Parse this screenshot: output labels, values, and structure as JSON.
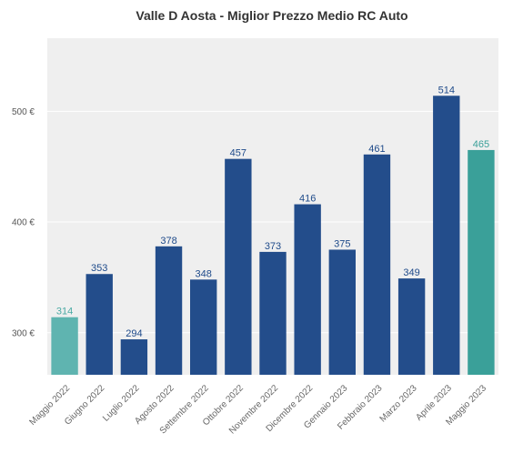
{
  "chart_data": {
    "type": "bar",
    "title": "Valle D Aosta - Miglior Prezzo Medio RC Auto",
    "xlabel": "",
    "ylabel": "",
    "categories": [
      "Maggio 2022",
      "Giugno 2022",
      "Luglio 2022",
      "Agosto 2022",
      "Settembre 2022",
      "Ottobre 2022",
      "Novembre 2022",
      "Dicembre 2022",
      "Gennaio 2023",
      "Febbraio 2023",
      "Marzo 2023",
      "Aprile 2023",
      "Maggio 2023"
    ],
    "values": [
      314,
      353,
      294,
      378,
      348,
      457,
      373,
      416,
      375,
      461,
      349,
      514,
      465
    ],
    "data_labels": [
      "314",
      "353",
      "294",
      "378",
      "348",
      "457",
      "373",
      "416",
      "375",
      "461",
      "349",
      "514",
      "465"
    ],
    "ylim": [
      262,
      566
    ],
    "yticks": [
      300,
      400,
      500
    ],
    "ytick_labels": [
      "300 €",
      "400 €",
      "500 €"
    ],
    "grid": true,
    "legend": "none",
    "bar_colors": [
      "#5fb4b0",
      "#234d8b",
      "#234d8b",
      "#234d8b",
      "#234d8b",
      "#234d8b",
      "#234d8b",
      "#234d8b",
      "#234d8b",
      "#234d8b",
      "#234d8b",
      "#234d8b",
      "#3aa099"
    ],
    "label_colors": [
      "#4aaaa4",
      "#1e4a8a",
      "#1e4a8a",
      "#1e4a8a",
      "#1e4a8a",
      "#1e4a8a",
      "#1e4a8a",
      "#1e4a8a",
      "#1e4a8a",
      "#1e4a8a",
      "#1e4a8a",
      "#1e4a8a",
      "#3aa099"
    ],
    "plot_background": "#efefef",
    "grid_color": "#ffffff"
  }
}
